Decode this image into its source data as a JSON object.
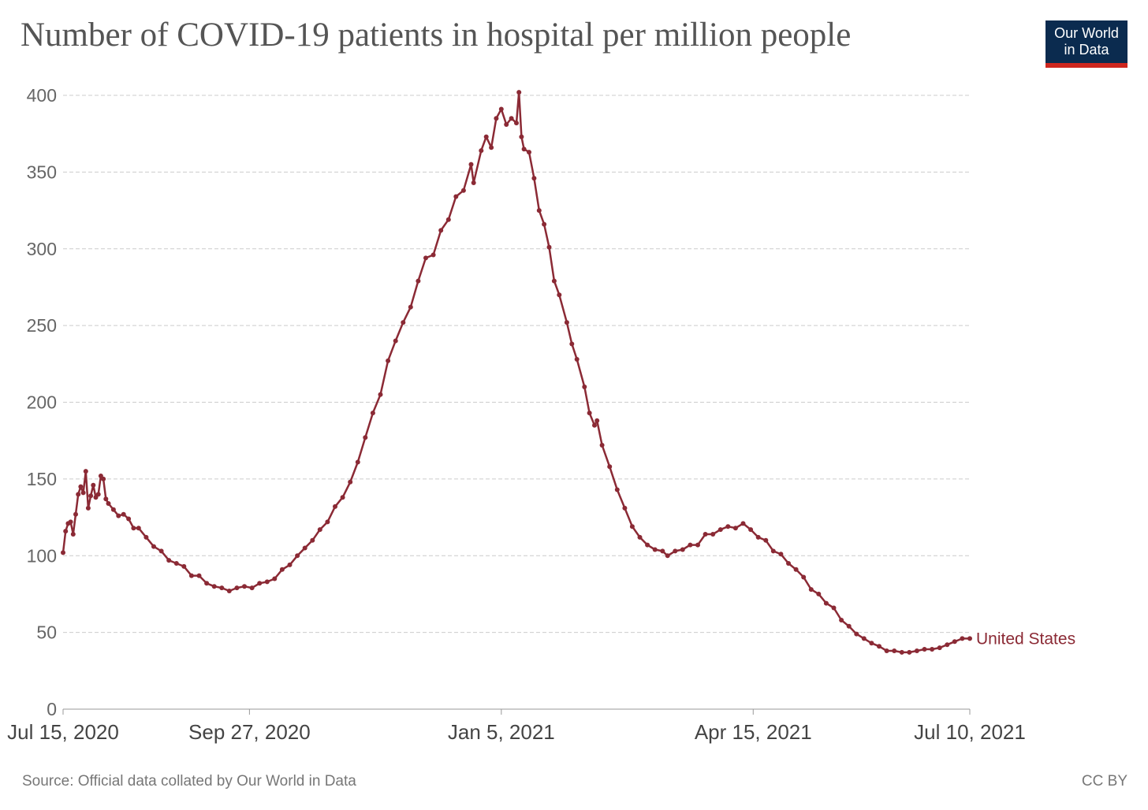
{
  "header": {
    "title": "Number of COVID-19 patients in hospital per million people",
    "logo_line1": "Our World",
    "logo_line2": "in Data"
  },
  "footer": {
    "source": "Source: Official data collated by Our World in Data",
    "license": "CC BY"
  },
  "colors": {
    "series": "#8b2a35",
    "logo_bg": "#0b2b4f",
    "logo_accent": "#ce261e"
  },
  "chart_data": {
    "type": "line",
    "title": "Number of COVID-19 patients in hospital per million people",
    "xlabel": "",
    "ylabel": "",
    "ylim": [
      0,
      400
    ],
    "yticks": [
      0,
      50,
      100,
      150,
      200,
      250,
      300,
      350,
      400
    ],
    "xticks": [
      "Jul 15, 2020",
      "Sep 27, 2020",
      "Jan 5, 2021",
      "Apr 15, 2021",
      "Jul 10, 2021"
    ],
    "xrange": [
      "2020-07-15",
      "2021-07-10"
    ],
    "grid": "horizontal dashed",
    "legend": "inline label at line end",
    "series": [
      {
        "name": "United States",
        "color": "#8b2a35",
        "points": [
          [
            "2020-07-15",
            102
          ],
          [
            "2020-07-16",
            116
          ],
          [
            "2020-07-17",
            121
          ],
          [
            "2020-07-18",
            122
          ],
          [
            "2020-07-19",
            114
          ],
          [
            "2020-07-20",
            127
          ],
          [
            "2020-07-21",
            140
          ],
          [
            "2020-07-22",
            145
          ],
          [
            "2020-07-23",
            141
          ],
          [
            "2020-07-24",
            155
          ],
          [
            "2020-07-25",
            131
          ],
          [
            "2020-07-26",
            139
          ],
          [
            "2020-07-27",
            146
          ],
          [
            "2020-07-28",
            138
          ],
          [
            "2020-07-29",
            140
          ],
          [
            "2020-07-30",
            152
          ],
          [
            "2020-07-31",
            150
          ],
          [
            "2020-08-01",
            137
          ],
          [
            "2020-08-02",
            134
          ],
          [
            "2020-08-04",
            130
          ],
          [
            "2020-08-06",
            126
          ],
          [
            "2020-08-08",
            127
          ],
          [
            "2020-08-10",
            124
          ],
          [
            "2020-08-12",
            118
          ],
          [
            "2020-08-14",
            118
          ],
          [
            "2020-08-17",
            112
          ],
          [
            "2020-08-20",
            106
          ],
          [
            "2020-08-23",
            103
          ],
          [
            "2020-08-26",
            97
          ],
          [
            "2020-08-29",
            95
          ],
          [
            "2020-09-01",
            93
          ],
          [
            "2020-09-04",
            87
          ],
          [
            "2020-09-07",
            87
          ],
          [
            "2020-09-10",
            82
          ],
          [
            "2020-09-13",
            80
          ],
          [
            "2020-09-16",
            79
          ],
          [
            "2020-09-19",
            77
          ],
          [
            "2020-09-22",
            79
          ],
          [
            "2020-09-25",
            80
          ],
          [
            "2020-09-28",
            79
          ],
          [
            "2020-10-01",
            82
          ],
          [
            "2020-10-04",
            83
          ],
          [
            "2020-10-07",
            85
          ],
          [
            "2020-10-10",
            91
          ],
          [
            "2020-10-13",
            94
          ],
          [
            "2020-10-16",
            100
          ],
          [
            "2020-10-19",
            105
          ],
          [
            "2020-10-22",
            110
          ],
          [
            "2020-10-25",
            117
          ],
          [
            "2020-10-28",
            122
          ],
          [
            "2020-10-31",
            132
          ],
          [
            "2020-11-03",
            138
          ],
          [
            "2020-11-06",
            148
          ],
          [
            "2020-11-09",
            161
          ],
          [
            "2020-11-12",
            177
          ],
          [
            "2020-11-15",
            193
          ],
          [
            "2020-11-18",
            205
          ],
          [
            "2020-11-21",
            227
          ],
          [
            "2020-11-24",
            240
          ],
          [
            "2020-11-27",
            252
          ],
          [
            "2020-11-30",
            262
          ],
          [
            "2020-12-03",
            279
          ],
          [
            "2020-12-06",
            294
          ],
          [
            "2020-12-09",
            296
          ],
          [
            "2020-12-12",
            312
          ],
          [
            "2020-12-15",
            319
          ],
          [
            "2020-12-18",
            334
          ],
          [
            "2020-12-21",
            338
          ],
          [
            "2020-12-24",
            355
          ],
          [
            "2020-12-25",
            343
          ],
          [
            "2020-12-28",
            364
          ],
          [
            "2020-12-30",
            373
          ],
          [
            "2021-01-01",
            366
          ],
          [
            "2021-01-03",
            385
          ],
          [
            "2021-01-05",
            391
          ],
          [
            "2021-01-07",
            381
          ],
          [
            "2021-01-09",
            385
          ],
          [
            "2021-01-11",
            382
          ],
          [
            "2021-01-12",
            402
          ],
          [
            "2021-01-13",
            373
          ],
          [
            "2021-01-14",
            365
          ],
          [
            "2021-01-16",
            363
          ],
          [
            "2021-01-18",
            346
          ],
          [
            "2021-01-20",
            325
          ],
          [
            "2021-01-22",
            316
          ],
          [
            "2021-01-24",
            301
          ],
          [
            "2021-01-26",
            279
          ],
          [
            "2021-01-28",
            270
          ],
          [
            "2021-01-31",
            252
          ],
          [
            "2021-02-02",
            238
          ],
          [
            "2021-02-04",
            228
          ],
          [
            "2021-02-07",
            210
          ],
          [
            "2021-02-09",
            193
          ],
          [
            "2021-02-11",
            185
          ],
          [
            "2021-02-12",
            188
          ],
          [
            "2021-02-14",
            172
          ],
          [
            "2021-02-17",
            158
          ],
          [
            "2021-02-20",
            143
          ],
          [
            "2021-02-23",
            131
          ],
          [
            "2021-02-26",
            119
          ],
          [
            "2021-03-01",
            112
          ],
          [
            "2021-03-04",
            107
          ],
          [
            "2021-03-07",
            104
          ],
          [
            "2021-03-10",
            103
          ],
          [
            "2021-03-12",
            100
          ],
          [
            "2021-03-15",
            103
          ],
          [
            "2021-03-18",
            104
          ],
          [
            "2021-03-21",
            107
          ],
          [
            "2021-03-24",
            107
          ],
          [
            "2021-03-27",
            114
          ],
          [
            "2021-03-30",
            114
          ],
          [
            "2021-04-02",
            117
          ],
          [
            "2021-04-05",
            119
          ],
          [
            "2021-04-08",
            118
          ],
          [
            "2021-04-11",
            121
          ],
          [
            "2021-04-14",
            117
          ],
          [
            "2021-04-17",
            112
          ],
          [
            "2021-04-20",
            110
          ],
          [
            "2021-04-23",
            103
          ],
          [
            "2021-04-26",
            101
          ],
          [
            "2021-04-29",
            95
          ],
          [
            "2021-05-02",
            91
          ],
          [
            "2021-05-05",
            86
          ],
          [
            "2021-05-08",
            78
          ],
          [
            "2021-05-11",
            75
          ],
          [
            "2021-05-14",
            69
          ],
          [
            "2021-05-17",
            66
          ],
          [
            "2021-05-20",
            58
          ],
          [
            "2021-05-23",
            54
          ],
          [
            "2021-05-26",
            49
          ],
          [
            "2021-05-29",
            46
          ],
          [
            "2021-06-01",
            43
          ],
          [
            "2021-06-04",
            41
          ],
          [
            "2021-06-07",
            38
          ],
          [
            "2021-06-10",
            38
          ],
          [
            "2021-06-13",
            37
          ],
          [
            "2021-06-16",
            37
          ],
          [
            "2021-06-19",
            38
          ],
          [
            "2021-06-22",
            39
          ],
          [
            "2021-06-25",
            39
          ],
          [
            "2021-06-28",
            40
          ],
          [
            "2021-07-01",
            42
          ],
          [
            "2021-07-04",
            44
          ],
          [
            "2021-07-07",
            46
          ],
          [
            "2021-07-10",
            46
          ]
        ]
      }
    ]
  }
}
